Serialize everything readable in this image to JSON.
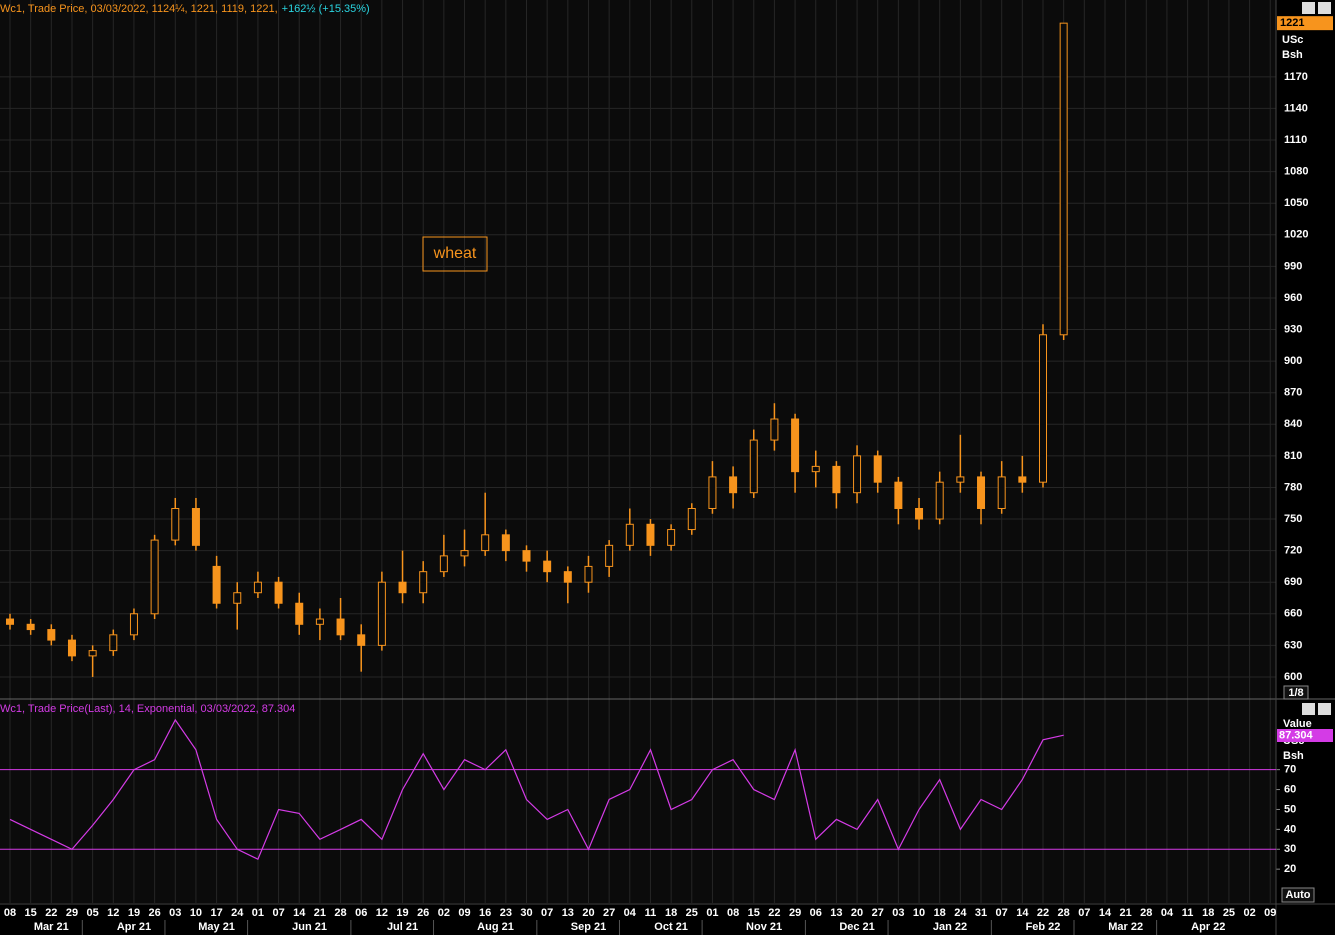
{
  "chart_data": [
    {
      "type": "candlestick",
      "header": "Wc1, Trade Price, 03/03/2022, 1124¼, 1221, 1119, 1221,",
      "header_change": "+162½ (+15.35%)",
      "annotation": "wheat",
      "unit_top": "USc",
      "unit_bottom": "Bsh",
      "scale_label": "1/8",
      "color": "#f7941d",
      "x": [
        "2021-03-08",
        "2021-03-15",
        "2021-03-22",
        "2021-03-29",
        "2021-04-05",
        "2021-04-12",
        "2021-04-19",
        "2021-04-26",
        "2021-05-03",
        "2021-05-10",
        "2021-05-17",
        "2021-05-24",
        "2021-05-31",
        "2021-06-07",
        "2021-06-14",
        "2021-06-21",
        "2021-06-28",
        "2021-07-05",
        "2021-07-12",
        "2021-07-19",
        "2021-07-26",
        "2021-08-02",
        "2021-08-09",
        "2021-08-16",
        "2021-08-23",
        "2021-08-30",
        "2021-09-06",
        "2021-09-13",
        "2021-09-20",
        "2021-09-27",
        "2021-10-04",
        "2021-10-11",
        "2021-10-18",
        "2021-10-25",
        "2021-11-01",
        "2021-11-08",
        "2021-11-15",
        "2021-11-22",
        "2021-11-29",
        "2021-12-06",
        "2021-12-13",
        "2021-12-20",
        "2021-12-27",
        "2022-01-03",
        "2022-01-10",
        "2022-01-17",
        "2022-01-24",
        "2022-01-31",
        "2022-02-07",
        "2022-02-14",
        "2022-02-21",
        "2022-02-28"
      ],
      "open": [
        655,
        650,
        645,
        635,
        620,
        625,
        640,
        660,
        730,
        760,
        705,
        670,
        680,
        690,
        670,
        650,
        655,
        640,
        630,
        690,
        680,
        700,
        715,
        720,
        735,
        720,
        710,
        700,
        690,
        705,
        725,
        745,
        725,
        740,
        760,
        790,
        775,
        825,
        845,
        795,
        800,
        775,
        810,
        785,
        760,
        750,
        785,
        790,
        760,
        790,
        785,
        925
      ],
      "high": [
        660,
        655,
        650,
        640,
        630,
        645,
        665,
        735,
        770,
        770,
        715,
        690,
        700,
        695,
        680,
        665,
        675,
        650,
        700,
        720,
        710,
        735,
        740,
        775,
        740,
        725,
        720,
        705,
        715,
        730,
        760,
        750,
        745,
        765,
        805,
        800,
        835,
        860,
        850,
        815,
        805,
        820,
        815,
        790,
        770,
        795,
        830,
        795,
        805,
        810,
        935,
        1221
      ],
      "low": [
        645,
        640,
        630,
        615,
        600,
        620,
        635,
        655,
        725,
        720,
        665,
        645,
        675,
        665,
        640,
        635,
        635,
        605,
        625,
        670,
        670,
        695,
        705,
        715,
        710,
        700,
        690,
        670,
        680,
        695,
        720,
        715,
        720,
        735,
        755,
        760,
        770,
        815,
        775,
        780,
        760,
        765,
        775,
        745,
        740,
        745,
        775,
        745,
        755,
        775,
        780,
        920
      ],
      "close": [
        650,
        645,
        635,
        620,
        625,
        640,
        660,
        730,
        760,
        725,
        670,
        680,
        690,
        670,
        650,
        655,
        640,
        630,
        690,
        680,
        700,
        715,
        720,
        735,
        720,
        710,
        700,
        690,
        705,
        725,
        745,
        725,
        740,
        760,
        790,
        775,
        825,
        845,
        795,
        800,
        775,
        810,
        785,
        760,
        750,
        785,
        790,
        760,
        790,
        785,
        925,
        1221
      ],
      "ylim": [
        580,
        1243
      ],
      "yticks": [
        600,
        630,
        660,
        690,
        720,
        750,
        780,
        810,
        840,
        870,
        900,
        930,
        960,
        990,
        1020,
        1050,
        1080,
        1110,
        1140,
        1170
      ]
    },
    {
      "type": "line",
      "header": "Wc1, Trade Price(Last),  14, Exponential, 03/03/2022, 87.304",
      "value_title": "Value",
      "unit_top": "USc",
      "unit_bottom": "Bsh",
      "scale_label": "Auto",
      "color": "#d43be6",
      "x": [
        "2021-03-08",
        "2021-03-15",
        "2021-03-22",
        "2021-03-29",
        "2021-04-05",
        "2021-04-12",
        "2021-04-19",
        "2021-04-26",
        "2021-05-03",
        "2021-05-10",
        "2021-05-17",
        "2021-05-24",
        "2021-05-31",
        "2021-06-07",
        "2021-06-14",
        "2021-06-21",
        "2021-06-28",
        "2021-07-05",
        "2021-07-12",
        "2021-07-19",
        "2021-07-26",
        "2021-08-02",
        "2021-08-09",
        "2021-08-16",
        "2021-08-23",
        "2021-08-30",
        "2021-09-06",
        "2021-09-13",
        "2021-09-20",
        "2021-09-27",
        "2021-10-04",
        "2021-10-11",
        "2021-10-18",
        "2021-10-25",
        "2021-11-01",
        "2021-11-08",
        "2021-11-15",
        "2021-11-22",
        "2021-11-29",
        "2021-12-06",
        "2021-12-13",
        "2021-12-20",
        "2021-12-27",
        "2022-01-03",
        "2022-01-10",
        "2022-01-17",
        "2022-01-24",
        "2022-01-31",
        "2022-02-07",
        "2022-02-14",
        "2022-02-21",
        "2022-02-28"
      ],
      "values": [
        45,
        40,
        35,
        30,
        42,
        55,
        70,
        75,
        95,
        80,
        45,
        30,
        25,
        50,
        48,
        35,
        40,
        45,
        35,
        60,
        78,
        60,
        75,
        70,
        80,
        55,
        45,
        50,
        30,
        55,
        60,
        80,
        50,
        55,
        70,
        75,
        60,
        55,
        80,
        35,
        45,
        40,
        55,
        30,
        50,
        65,
        40,
        55,
        50,
        65,
        85,
        87.304
      ],
      "ylim": [
        3,
        105
      ],
      "yticks": [
        20,
        30,
        40,
        50,
        60,
        70
      ],
      "reference_lines": [
        70,
        30
      ]
    }
  ],
  "x_axis": {
    "day_labels": [
      "08",
      "15",
      "22",
      "29",
      "05",
      "12",
      "19",
      "26",
      "03",
      "10",
      "17",
      "24",
      "01",
      "07",
      "14",
      "21",
      "28",
      "06",
      "12",
      "19",
      "26",
      "02",
      "09",
      "16",
      "23",
      "30",
      "07",
      "13",
      "20",
      "27",
      "04",
      "11",
      "18",
      "25",
      "01",
      "08",
      "15",
      "22",
      "29",
      "06",
      "13",
      "20",
      "27",
      "03",
      "10",
      "18",
      "24",
      "31",
      "07",
      "14",
      "22",
      "28",
      "07",
      "14",
      "21",
      "28",
      "04",
      "11",
      "18",
      "25",
      "02",
      "09"
    ],
    "month_labels": [
      "Mar 21",
      "Apr 21",
      "May 21",
      "Jun 21",
      "Jul 21",
      "Aug 21",
      "Sep 21",
      "Oct 21",
      "Nov 21",
      "Dec 21",
      "Jan 22",
      "Feb 22",
      "Mar 22",
      "Apr 22"
    ]
  }
}
